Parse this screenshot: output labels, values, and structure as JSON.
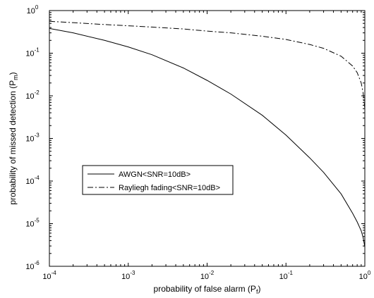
{
  "chart_data": {
    "type": "line",
    "title": "",
    "xlabel": "probability of false alarm (P_f)",
    "ylabel": "probability of missed detection (P_m)",
    "x_scale": "log",
    "y_scale": "log",
    "xlim": [
      0.0001,
      1
    ],
    "ylim": [
      1e-06,
      1
    ],
    "x_ticks": [
      {
        "value": 0.0001,
        "base": "10",
        "exp": "-4"
      },
      {
        "value": 0.001,
        "base": "10",
        "exp": "-3"
      },
      {
        "value": 0.01,
        "base": "10",
        "exp": "-2"
      },
      {
        "value": 0.1,
        "base": "10",
        "exp": "-1"
      },
      {
        "value": 1,
        "base": "10",
        "exp": "0"
      }
    ],
    "y_ticks": [
      {
        "value": 1e-06,
        "base": "10",
        "exp": "-6"
      },
      {
        "value": 1e-05,
        "base": "10",
        "exp": "-5"
      },
      {
        "value": 0.0001,
        "base": "10",
        "exp": "-4"
      },
      {
        "value": 0.001,
        "base": "10",
        "exp": "-3"
      },
      {
        "value": 0.01,
        "base": "10",
        "exp": "-2"
      },
      {
        "value": 0.1,
        "base": "10",
        "exp": "-1"
      },
      {
        "value": 1,
        "base": "10",
        "exp": "0"
      }
    ],
    "grid": false,
    "legend_position": "center-left",
    "series": [
      {
        "name": "AWGN<SNR=10dB>",
        "style": "solid",
        "color": "#000000",
        "x": [
          0.0001,
          0.0002,
          0.0005,
          0.001,
          0.002,
          0.005,
          0.01,
          0.02,
          0.05,
          0.1,
          0.2,
          0.3,
          0.5,
          0.7,
          0.8,
          0.9,
          0.95,
          0.98,
          1.0
        ],
        "y": [
          0.38,
          0.3,
          0.2,
          0.14,
          0.092,
          0.045,
          0.023,
          0.011,
          0.0035,
          0.0012,
          0.00035,
          0.00016,
          5e-05,
          1.75e-05,
          1.1e-05,
          6.8e-06,
          4.8e-06,
          3.5e-06,
          2.8e-06
        ]
      },
      {
        "name": "Rayliegh fading<SNR=10dB>",
        "style": "dash-dot",
        "color": "#000000",
        "x": [
          0.0001,
          0.0002,
          0.0005,
          0.001,
          0.002,
          0.005,
          0.01,
          0.02,
          0.05,
          0.1,
          0.2,
          0.3,
          0.5,
          0.7,
          0.8,
          0.9,
          0.95,
          1.0
        ],
        "y": [
          0.56,
          0.52,
          0.47,
          0.44,
          0.41,
          0.37,
          0.33,
          0.3,
          0.25,
          0.21,
          0.16,
          0.13,
          0.085,
          0.05,
          0.035,
          0.02,
          0.012,
          0.005
        ]
      }
    ]
  }
}
